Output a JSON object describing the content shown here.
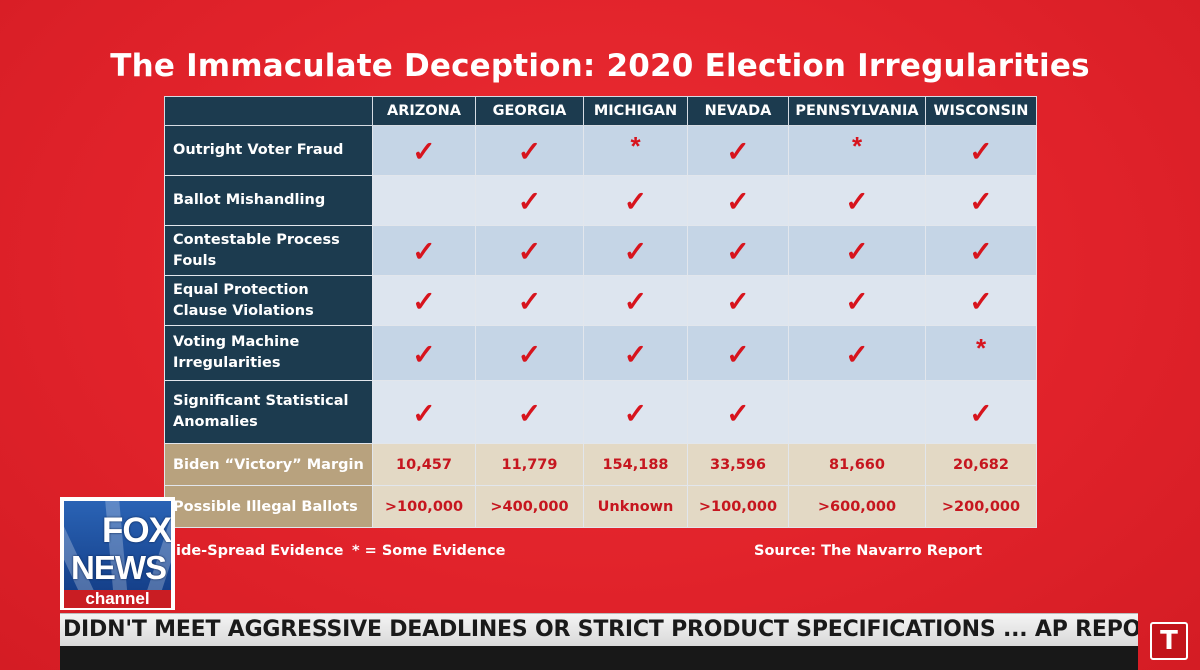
{
  "title": "The Immaculate Deception: 2020 Election Irregularities",
  "columns": [
    "ARIZONA",
    "GEORGIA",
    "MICHIGAN",
    "NEVADA",
    "PENNSYLVANIA",
    "WISCONSIN"
  ],
  "marks": {
    "check": "✓",
    "star": "*"
  },
  "rows": [
    {
      "label": "Outright Voter Fraud",
      "cells": [
        "check",
        "check",
        "star",
        "check",
        "star",
        "check"
      ]
    },
    {
      "label": "Ballot Mishandling",
      "cells": [
        "",
        "check",
        "check",
        "check",
        "check",
        "check"
      ]
    },
    {
      "label": "Contestable Process Fouls",
      "cells": [
        "check",
        "check",
        "check",
        "check",
        "check",
        "check"
      ]
    },
    {
      "label": "Equal Protection Clause Violations",
      "cells": [
        "check",
        "check",
        "check",
        "check",
        "check",
        "check"
      ]
    },
    {
      "label": "Voting Machine Irregularities",
      "cells": [
        "check",
        "check",
        "check",
        "check",
        "check",
        "star"
      ]
    },
    {
      "label": "Significant Statistical Anomalies",
      "cells": [
        "check",
        "check",
        "check",
        "check",
        "",
        "check"
      ]
    }
  ],
  "summary_rows": [
    {
      "label": "Biden “Victory” Margin",
      "values": [
        "10,457",
        "11,779",
        "154,188",
        "33,596",
        "81,660",
        "20,682"
      ]
    },
    {
      "label": "Possible Illegal Ballots",
      "values": [
        ">100,000",
        ">400,000",
        "Unknown",
        ">100,000",
        ">600,000",
        ">200,000"
      ]
    }
  ],
  "legend": {
    "widespread": "ide-Spread Evidence",
    "some": "* = Some Evidence",
    "source": "Source: The Navarro Report"
  },
  "network_logo": {
    "line1": "FOX",
    "line2": "NEWS",
    "line3": "channel"
  },
  "ticker": "DIDN'T MEET AGGRESSIVE DEADLINES OR STRICT PRODUCT SPECIFICATIONS ... AP REPORT ALSO DETAILS I",
  "corner_badge": "T",
  "colors": {
    "background": "#e5252c",
    "header_navy": "#1c3b4f",
    "cell_blue": "#c5d5e6",
    "cell_light": "#dde5ef",
    "tan": "#b8a27e",
    "mark_red": "#d7141d"
  }
}
